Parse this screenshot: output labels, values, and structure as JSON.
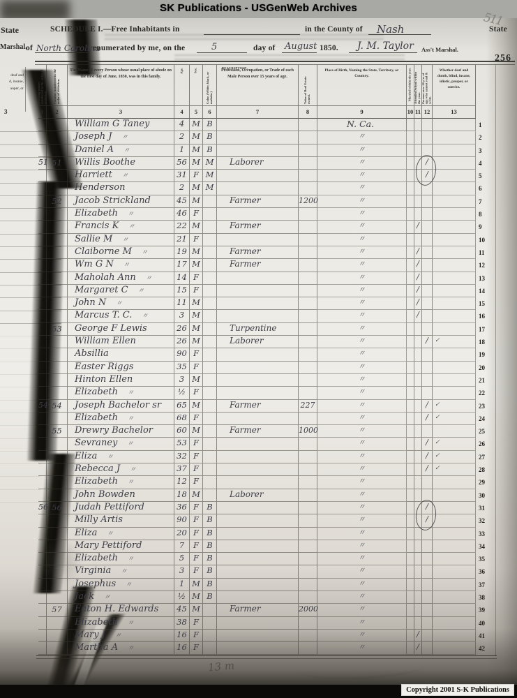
{
  "banner": {
    "title": "SK Publications - USGenWeb Archives"
  },
  "form_header": {
    "line1": {
      "schedule_label": "SCHEDULE I.—Free Inhabitants in",
      "county_printed": "in the County of",
      "county_written": "Nash",
      "state_word": "State"
    },
    "line2": {
      "of_printed": "of",
      "state_written": "North Carolina",
      "enumerated_printed": "enumerated by me, on the",
      "day_written": "5",
      "day_of_printed": "day of",
      "month_written": "August",
      "year_printed": "1850.",
      "marshal_signature": "J. M. Taylor",
      "marshal_printed": "Ass't Marshal."
    },
    "page_number": "256",
    "pencil_number": "511",
    "left_margin_fragments": {
      "state": "State",
      "marshal": "Marshal.",
      "column_text": [
        "deaf and",
        "d, insane,",
        "auper, or"
      ],
      "column_number": "3"
    }
  },
  "table": {
    "description_span_label": "DESCRIPTION.",
    "columns": [
      {
        "no": "1",
        "heading": "Dwelling-houses numbered in the order of visitation.",
        "rotated": true
      },
      {
        "no": "2",
        "heading": "Families numbered in the order of visitation.",
        "rotated": true
      },
      {
        "no": "3",
        "heading": "The Name of every Person whose usual place of abode on the first day of June, 1850, was in this family.",
        "rotated": false
      },
      {
        "no": "4",
        "heading": "Age.",
        "rotated": true
      },
      {
        "no": "5",
        "heading": "Sex.",
        "rotated": true
      },
      {
        "no": "6",
        "heading": "Color, (White, black, or mulatto.)",
        "rotated": true
      },
      {
        "no": "7",
        "heading": "Profession, Occupation, or Trade of each Male Person over 15 years of age.",
        "rotated": false
      },
      {
        "no": "8",
        "heading": "Value of Real Estate owned.",
        "rotated": true
      },
      {
        "no": "9",
        "heading": "Place of Birth, Naming the State, Territory, or Country.",
        "rotated": false
      },
      {
        "no": "10",
        "heading": "Married within the year.",
        "rotated": true
      },
      {
        "no": "11",
        "heading": "Attended School within the year.",
        "rotated": true
      },
      {
        "no": "12",
        "heading": "Persons over 20 y'rs of age who cannot read & write.",
        "rotated": true
      },
      {
        "no": "13",
        "heading": "Whether deaf and dumb, blind, insane, idiotic, pauper, or convict.",
        "rotated": false
      }
    ],
    "rows": [
      {
        "n": "1",
        "d": "",
        "f": "",
        "name": "William G Taney",
        "ditto": false,
        "age": "4",
        "sex": "M",
        "col": "B",
        "occ": "",
        "val": "",
        "birth": "N. Ca.",
        "m11": "",
        "m12": "",
        "m13": ""
      },
      {
        "n": "2",
        "d": "",
        "f": "",
        "name": "Joseph J",
        "ditto": true,
        "age": "2",
        "sex": "M",
        "col": "B",
        "occ": "",
        "val": "",
        "birth": "〃",
        "m11": "",
        "m12": "",
        "m13": ""
      },
      {
        "n": "3",
        "d": "",
        "f": "",
        "name": "Daniel A",
        "ditto": true,
        "age": "1",
        "sex": "M",
        "col": "B",
        "occ": "",
        "val": "",
        "birth": "〃",
        "m11": "",
        "m12": "",
        "m13": ""
      },
      {
        "n": "4",
        "d": "51",
        "f": "51",
        "name": "Willis Boothe",
        "ditto": false,
        "age": "56",
        "sex": "M",
        "col": "M",
        "occ": "Laborer",
        "val": "",
        "birth": "〃",
        "m11": "",
        "m12": "/",
        "m13": ""
      },
      {
        "n": "5",
        "d": "",
        "f": "",
        "name": "Harriett",
        "ditto": true,
        "age": "31",
        "sex": "F",
        "col": "M",
        "occ": "",
        "val": "",
        "birth": "〃",
        "m11": "",
        "m12": "/",
        "m13": ""
      },
      {
        "n": "6",
        "d": "",
        "f": "",
        "name": "Henderson",
        "ditto": false,
        "age": "2",
        "sex": "M",
        "col": "M",
        "occ": "",
        "val": "",
        "birth": "〃",
        "m11": "",
        "m12": "",
        "m13": ""
      },
      {
        "n": "7",
        "d": "",
        "f": "52",
        "name": "Jacob Strickland",
        "ditto": false,
        "age": "45",
        "sex": "M",
        "col": "",
        "occ": "Farmer",
        "val": "1200",
        "birth": "〃",
        "m11": "",
        "m12": "",
        "m13": ""
      },
      {
        "n": "8",
        "d": "",
        "f": "",
        "name": "Elizabeth",
        "ditto": true,
        "age": "46",
        "sex": "F",
        "col": "",
        "occ": "",
        "val": "",
        "birth": "〃",
        "m11": "",
        "m12": "",
        "m13": ""
      },
      {
        "n": "9",
        "d": "",
        "f": "",
        "name": "Francis K",
        "ditto": true,
        "age": "22",
        "sex": "M",
        "col": "",
        "occ": "Farmer",
        "val": "",
        "birth": "〃",
        "m11": "/",
        "m12": "",
        "m13": ""
      },
      {
        "n": "10",
        "d": "",
        "f": "",
        "name": "Sallie M",
        "ditto": true,
        "age": "21",
        "sex": "F",
        "col": "",
        "occ": "",
        "val": "",
        "birth": "〃",
        "m11": "",
        "m12": "",
        "m13": ""
      },
      {
        "n": "11",
        "d": "",
        "f": "",
        "name": "Claiborne M",
        "ditto": true,
        "age": "19",
        "sex": "M",
        "col": "",
        "occ": "Farmer",
        "val": "",
        "birth": "〃",
        "m11": "/",
        "m12": "",
        "m13": ""
      },
      {
        "n": "12",
        "d": "",
        "f": "",
        "name": "Wm G N",
        "ditto": true,
        "age": "17",
        "sex": "M",
        "col": "",
        "occ": "Farmer",
        "val": "",
        "birth": "〃",
        "m11": "/",
        "m12": "",
        "m13": ""
      },
      {
        "n": "13",
        "d": "",
        "f": "",
        "name": "Maholah Ann",
        "ditto": true,
        "age": "14",
        "sex": "F",
        "col": "",
        "occ": "",
        "val": "",
        "birth": "〃",
        "m11": "/",
        "m12": "",
        "m13": ""
      },
      {
        "n": "14",
        "d": "",
        "f": "",
        "name": "Margaret C",
        "ditto": true,
        "age": "15",
        "sex": "F",
        "col": "",
        "occ": "",
        "val": "",
        "birth": "〃",
        "m11": "/",
        "m12": "",
        "m13": ""
      },
      {
        "n": "15",
        "d": "",
        "f": "",
        "name": "John N",
        "ditto": true,
        "age": "11",
        "sex": "M",
        "col": "",
        "occ": "",
        "val": "",
        "birth": "〃",
        "m11": "/",
        "m12": "",
        "m13": ""
      },
      {
        "n": "16",
        "d": "",
        "f": "",
        "name": "Marcus T. C.",
        "ditto": true,
        "age": "3",
        "sex": "M",
        "col": "",
        "occ": "",
        "val": "",
        "birth": "〃",
        "m11": "/",
        "m12": "",
        "m13": ""
      },
      {
        "n": "17",
        "d": "",
        "f": "53",
        "name": "George F Lewis",
        "ditto": false,
        "age": "26",
        "sex": "M",
        "col": "",
        "occ": "Turpentine",
        "val": "",
        "birth": "〃",
        "m11": "",
        "m12": "",
        "m13": ""
      },
      {
        "n": "18",
        "d": "",
        "f": "",
        "name": "William Ellen",
        "ditto": false,
        "age": "26",
        "sex": "M",
        "col": "",
        "occ": "Laborer",
        "val": "",
        "birth": "〃",
        "m11": "",
        "m12": "/",
        "m13": "✓"
      },
      {
        "n": "19",
        "d": "",
        "f": "",
        "name": "Absillia",
        "ditto": false,
        "age": "90",
        "sex": "F",
        "col": "",
        "occ": "",
        "val": "",
        "birth": "〃",
        "m11": "",
        "m12": "",
        "m13": ""
      },
      {
        "n": "20",
        "d": "",
        "f": "",
        "name": "Easter Riggs",
        "ditto": false,
        "age": "35",
        "sex": "F",
        "col": "",
        "occ": "",
        "val": "",
        "birth": "〃",
        "m11": "",
        "m12": "",
        "m13": ""
      },
      {
        "n": "21",
        "d": "",
        "f": "",
        "name": "Hinton Ellen",
        "ditto": false,
        "age": "3",
        "sex": "M",
        "col": "",
        "occ": "",
        "val": "",
        "birth": "〃",
        "m11": "",
        "m12": "",
        "m13": ""
      },
      {
        "n": "22",
        "d": "",
        "f": "",
        "name": "Elizabeth",
        "ditto": true,
        "age": "½",
        "sex": "F",
        "col": "",
        "occ": "",
        "val": "",
        "birth": "〃",
        "m11": "",
        "m12": "",
        "m13": ""
      },
      {
        "n": "23",
        "d": "54",
        "f": "54",
        "name": "Joseph Bachelor sr",
        "ditto": false,
        "age": "65",
        "sex": "M",
        "col": "",
        "occ": "Farmer",
        "val": "227",
        "birth": "〃",
        "m11": "",
        "m12": "/",
        "m13": "✓"
      },
      {
        "n": "24",
        "d": "",
        "f": "",
        "name": "Elizabeth",
        "ditto": true,
        "age": "68",
        "sex": "F",
        "col": "",
        "occ": "",
        "val": "",
        "birth": "〃",
        "m11": "",
        "m12": "/",
        "m13": "✓"
      },
      {
        "n": "25",
        "d": "",
        "f": "55",
        "name": "Drewry Bachelor",
        "ditto": false,
        "age": "60",
        "sex": "M",
        "col": "",
        "occ": "Farmer",
        "val": "1000",
        "birth": "〃",
        "m11": "",
        "m12": "",
        "m13": ""
      },
      {
        "n": "26",
        "d": "",
        "f": "",
        "name": "Sevraney",
        "ditto": true,
        "age": "53",
        "sex": "F",
        "col": "",
        "occ": "",
        "val": "",
        "birth": "〃",
        "m11": "",
        "m12": "/",
        "m13": "✓"
      },
      {
        "n": "27",
        "d": "",
        "f": "",
        "name": "Eliza",
        "ditto": true,
        "age": "32",
        "sex": "F",
        "col": "",
        "occ": "",
        "val": "",
        "birth": "〃",
        "m11": "",
        "m12": "/",
        "m13": "✓"
      },
      {
        "n": "28",
        "d": "",
        "f": "",
        "name": "Rebecca J",
        "ditto": true,
        "age": "37",
        "sex": "F",
        "col": "",
        "occ": "",
        "val": "",
        "birth": "〃",
        "m11": "",
        "m12": "/",
        "m13": "✓"
      },
      {
        "n": "29",
        "d": "",
        "f": "",
        "name": "Elizabeth",
        "ditto": true,
        "age": "12",
        "sex": "F",
        "col": "",
        "occ": "",
        "val": "",
        "birth": "〃",
        "m11": "",
        "m12": "",
        "m13": ""
      },
      {
        "n": "30",
        "d": "",
        "f": "",
        "name": "John Bowden",
        "ditto": false,
        "age": "18",
        "sex": "M",
        "col": "",
        "occ": "Laborer",
        "val": "",
        "birth": "〃",
        "m11": "",
        "m12": "",
        "m13": ""
      },
      {
        "n": "31",
        "d": "56",
        "f": "56",
        "name": "Judah Pettiford",
        "ditto": false,
        "age": "36",
        "sex": "F",
        "col": "B",
        "occ": "",
        "val": "",
        "birth": "〃",
        "m11": "",
        "m12": "/",
        "m13": ""
      },
      {
        "n": "32",
        "d": "",
        "f": "",
        "name": "Milly Artis",
        "ditto": false,
        "age": "90",
        "sex": "F",
        "col": "B",
        "occ": "",
        "val": "",
        "birth": "〃",
        "m11": "",
        "m12": "/",
        "m13": ""
      },
      {
        "n": "33",
        "d": "",
        "f": "",
        "name": "Eliza",
        "ditto": true,
        "age": "20",
        "sex": "F",
        "col": "B",
        "occ": "",
        "val": "",
        "birth": "〃",
        "m11": "",
        "m12": "",
        "m13": ""
      },
      {
        "n": "34",
        "d": "",
        "f": "",
        "name": "Mary Pettiford",
        "ditto": false,
        "age": "7",
        "sex": "F",
        "col": "B",
        "occ": "",
        "val": "",
        "birth": "〃",
        "m11": "",
        "m12": "",
        "m13": ""
      },
      {
        "n": "35",
        "d": "",
        "f": "",
        "name": "Elizabeth",
        "ditto": true,
        "age": "5",
        "sex": "F",
        "col": "B",
        "occ": "",
        "val": "",
        "birth": "〃",
        "m11": "",
        "m12": "",
        "m13": ""
      },
      {
        "n": "36",
        "d": "",
        "f": "",
        "name": "Virginia",
        "ditto": true,
        "age": "3",
        "sex": "F",
        "col": "B",
        "occ": "",
        "val": "",
        "birth": "〃",
        "m11": "",
        "m12": "",
        "m13": ""
      },
      {
        "n": "37",
        "d": "",
        "f": "",
        "name": "Josephus",
        "ditto": true,
        "age": "1",
        "sex": "M",
        "col": "B",
        "occ": "",
        "val": "",
        "birth": "〃",
        "m11": "",
        "m12": "",
        "m13": ""
      },
      {
        "n": "38",
        "d": "",
        "f": "",
        "name": "Jack",
        "ditto": true,
        "age": "½",
        "sex": "M",
        "col": "B",
        "occ": "",
        "val": "",
        "birth": "〃",
        "m11": "",
        "m12": "",
        "m13": ""
      },
      {
        "n": "39",
        "d": "",
        "f": "57",
        "name": "Eaton H. Edwards",
        "ditto": false,
        "age": "45",
        "sex": "M",
        "col": "",
        "occ": "Farmer",
        "val": "2000",
        "birth": "〃",
        "m11": "",
        "m12": "",
        "m13": ""
      },
      {
        "n": "40",
        "d": "",
        "f": "",
        "name": "Elizabeth",
        "ditto": true,
        "age": "38",
        "sex": "F",
        "col": "",
        "occ": "",
        "val": "",
        "birth": "〃",
        "m11": "",
        "m12": "",
        "m13": ""
      },
      {
        "n": "41",
        "d": "",
        "f": "",
        "name": "Mary J",
        "ditto": true,
        "age": "16",
        "sex": "F",
        "col": "",
        "occ": "",
        "val": "",
        "birth": "〃",
        "m11": "/",
        "m12": "",
        "m13": ""
      },
      {
        "n": "42",
        "d": "",
        "f": "",
        "name": "Martha A",
        "ditto": true,
        "age": "16",
        "sex": "F",
        "col": "",
        "occ": "",
        "val": "",
        "birth": "〃",
        "m11": "/",
        "m12": "",
        "m13": ""
      }
    ]
  },
  "scan_marks": {
    "bottom_note": "13 m",
    "circled_row_pairs": [
      [
        4,
        5
      ],
      [
        31,
        32
      ]
    ]
  },
  "footer": {
    "copyright": "Copyright 2001 S-K Publications"
  }
}
